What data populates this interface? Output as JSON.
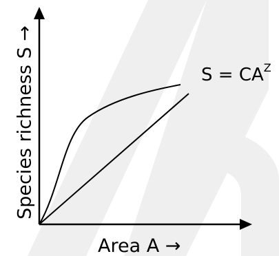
{
  "axes": {
    "y_label": "Species richness S →",
    "x_label": "Area A →"
  },
  "formula": {
    "base": "S = CA",
    "exponent": "Z"
  },
  "colors": {
    "line": "#000000",
    "watermark": "#efefef",
    "background": "#ffffff"
  }
}
